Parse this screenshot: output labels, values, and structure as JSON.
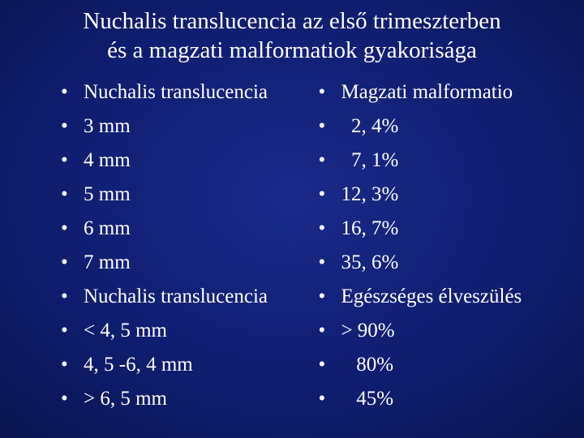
{
  "background": {
    "gradient_center": "#1a2a8a",
    "gradient_mid": "#0f1d6e",
    "gradient_outer": "#081246",
    "gradient_edge": "#020620"
  },
  "text_color": "#ffffff",
  "font_family": "Times New Roman",
  "title": {
    "line1": "Nuchalis translucencia az első trimeszterben",
    "line2": "és a magzati malformatiok gyakorisága",
    "fontsize": 29
  },
  "bullet_char": "•",
  "body_fontsize": 25,
  "left_column": [
    "Nuchalis translucencia",
    "3 mm",
    "4 mm",
    "5 mm",
    "6 mm",
    "7 mm",
    "Nuchalis translucencia",
    "< 4, 5 mm",
    "4, 5 -6, 4 mm",
    "> 6, 5 mm"
  ],
  "right_column": [
    "Magzati malformatio",
    "  2, 4%",
    "  7, 1%",
    "12, 3%",
    "16, 7%",
    "35, 6%",
    "Egészséges élveszülés",
    "> 90%",
    "   80%",
    "   45%"
  ]
}
